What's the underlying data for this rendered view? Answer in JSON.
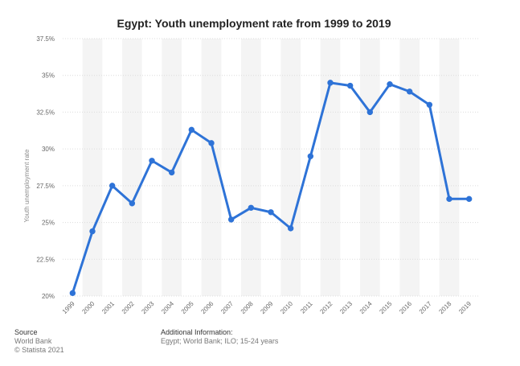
{
  "chart_data": {
    "type": "line",
    "title": "Egypt: Youth unemployment rate from 1999 to 2019",
    "xlabel": "",
    "ylabel": "Youth unemployment rate",
    "categories": [
      "1999",
      "2000",
      "2001",
      "2002",
      "2003",
      "2004",
      "2005",
      "2006",
      "2007",
      "2008",
      "2009",
      "2010",
      "2011",
      "2012",
      "2013",
      "2014",
      "2015",
      "2016",
      "2017",
      "2018",
      "2019"
    ],
    "series": [
      {
        "name": "Youth unemployment rate",
        "values": [
          20.2,
          24.4,
          27.5,
          26.3,
          29.2,
          28.4,
          31.3,
          30.4,
          25.2,
          26.0,
          25.7,
          24.6,
          29.5,
          34.5,
          34.3,
          32.5,
          34.4,
          33.9,
          33.0,
          26.6,
          26.6
        ],
        "color": "#2e73d7"
      }
    ],
    "yticks": [
      20,
      22.5,
      25,
      27.5,
      30,
      32.5,
      35,
      37.5
    ],
    "ytick_labels": [
      "20%",
      "22.5%",
      "25%",
      "27.5%",
      "30%",
      "32.5%",
      "35%",
      "37.5%"
    ],
    "ylim": [
      20,
      37.5
    ],
    "grid": true
  },
  "footer": {
    "source_heading": "Source",
    "source_line1": "World Bank",
    "source_line2": "© Statista 2021",
    "info_heading": "Additional Information:",
    "info_text": "Egypt; World Bank; ILO; 15-24 years"
  }
}
